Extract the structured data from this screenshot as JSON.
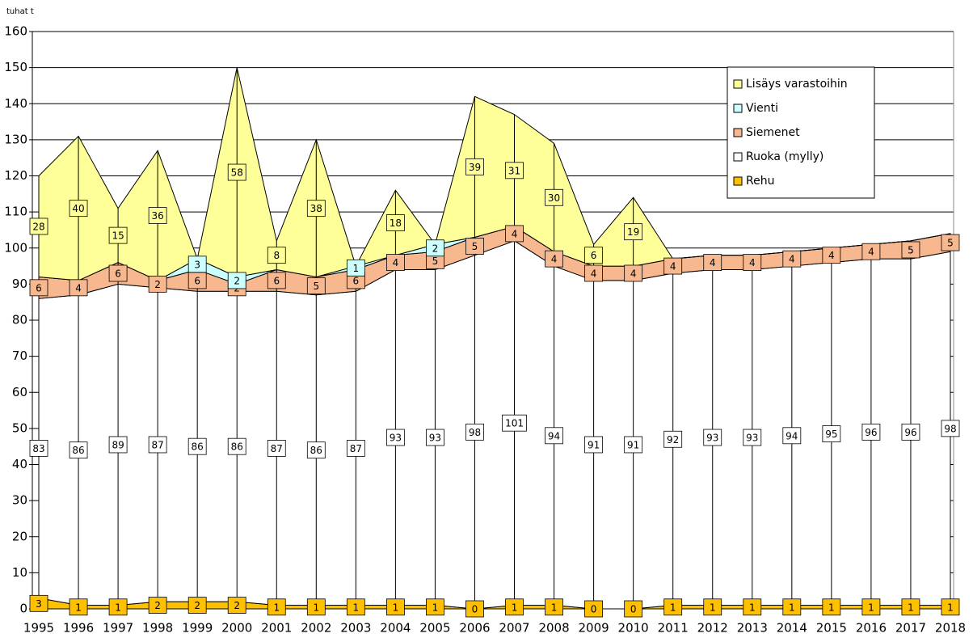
{
  "chart_data": {
    "type": "stacked_area",
    "y_label": "tuhat t",
    "categories": [
      "1995",
      "1996",
      "1997",
      "1998",
      "1999",
      "2000",
      "2001",
      "2002",
      "2003",
      "2004",
      "2005",
      "2006",
      "2007",
      "2008",
      "2009",
      "2010",
      "2011",
      "2012",
      "2013",
      "2014",
      "2015",
      "2016",
      "2017",
      "2018"
    ],
    "series": [
      {
        "name": "Rehu",
        "color": "#ffc000",
        "values": [
          3,
          1,
          1,
          2,
          2,
          2,
          1,
          1,
          1,
          1,
          1,
          0,
          1,
          1,
          0,
          0,
          1,
          1,
          1,
          1,
          1,
          1,
          1,
          1
        ]
      },
      {
        "name": "Ruoka (mylly)",
        "color": "#ffffff",
        "values": [
          83,
          86,
          89,
          87,
          86,
          86,
          87,
          86,
          87,
          93,
          93,
          98,
          101,
          94,
          91,
          91,
          92,
          93,
          93,
          94,
          95,
          96,
          96,
          98
        ]
      },
      {
        "name": "Siemenet",
        "color": "#f8b88f",
        "values": [
          6,
          4,
          6,
          2,
          6,
          2,
          6,
          5,
          6,
          4,
          5,
          5,
          4,
          4,
          4,
          4,
          4,
          4,
          4,
          4,
          4,
          4,
          5,
          5
        ]
      },
      {
        "name": "Vienti",
        "color": "#ccffff",
        "values": [
          0,
          0,
          0,
          0,
          3,
          2,
          0,
          0,
          1,
          0,
          2,
          0,
          0,
          0,
          0,
          0,
          0,
          0,
          0,
          0,
          0,
          0,
          0,
          0
        ],
        "value_labels": [
          null,
          null,
          null,
          null,
          "3",
          "2",
          null,
          null,
          "1",
          null,
          "2",
          null,
          null,
          null,
          null,
          null,
          null,
          null,
          null,
          null,
          null,
          null,
          null,
          null
        ]
      },
      {
        "name": "Lisäys varastoihin",
        "color": "#ffff99",
        "values": [
          28,
          40,
          15,
          36,
          0,
          58,
          8,
          38,
          0,
          18,
          0,
          39,
          31,
          30,
          6,
          19,
          0,
          0,
          0,
          0,
          0,
          0,
          0,
          0
        ],
        "value_labels": [
          "28",
          "40",
          "15",
          "36",
          null,
          "58",
          "8",
          "38",
          null,
          "18",
          null,
          "39",
          "31",
          "30",
          "6",
          "19",
          null,
          null,
          null,
          null,
          null,
          null,
          null,
          null
        ]
      }
    ],
    "ylim": [
      0,
      160
    ],
    "yticks": [
      0,
      10,
      20,
      30,
      40,
      50,
      60,
      70,
      80,
      90,
      100,
      110,
      120,
      130,
      140,
      150,
      160
    ],
    "grid": true
  }
}
